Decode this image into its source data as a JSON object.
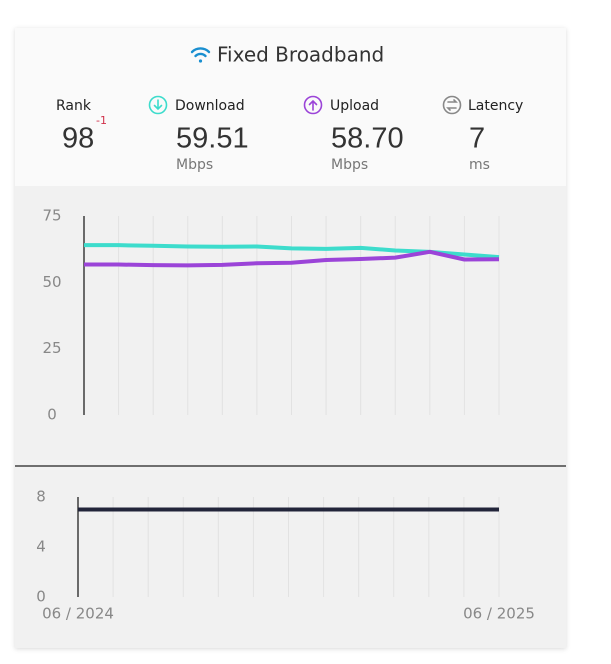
{
  "header": {
    "title": "Fixed Broadband",
    "stats": [
      {
        "label": "Rank",
        "value": "98",
        "change": "-1"
      },
      {
        "label": "Download",
        "value": "59.51",
        "unit": "Mbps"
      },
      {
        "label": "Upload",
        "value": "58.70",
        "unit": "Mbps"
      },
      {
        "label": "Latency",
        "value": "7",
        "unit": "ms"
      }
    ]
  },
  "chart_data": [
    {
      "type": "line",
      "ylim": [
        0,
        75
      ],
      "yticks": [
        0,
        25,
        50,
        75
      ],
      "grid": "x",
      "series": [
        {
          "name": "Download",
          "color": "#3ddccc",
          "values": [
            64,
            64,
            63.8,
            63.5,
            63.4,
            63.5,
            62.8,
            62.6,
            63,
            62,
            61.5,
            60.5,
            59.51
          ]
        },
        {
          "name": "Upload",
          "color": "#9b44d8",
          "values": [
            56.7,
            56.7,
            56.5,
            56.4,
            56.6,
            57.2,
            57.4,
            58.4,
            58.8,
            59.3,
            61.5,
            58.6,
            58.7
          ]
        }
      ]
    },
    {
      "type": "line",
      "ylim": [
        0,
        8
      ],
      "yticks": [
        0,
        4,
        8
      ],
      "grid": "x",
      "categories": [
        "06 / 2024",
        null,
        null,
        null,
        null,
        null,
        null,
        null,
        null,
        null,
        null,
        null,
        "06 / 2025"
      ],
      "series": [
        {
          "name": "Latency",
          "color": "#22253a",
          "values": [
            7,
            7,
            7,
            7,
            7,
            7,
            7,
            7,
            7,
            7,
            7,
            7,
            7
          ]
        }
      ]
    }
  ]
}
